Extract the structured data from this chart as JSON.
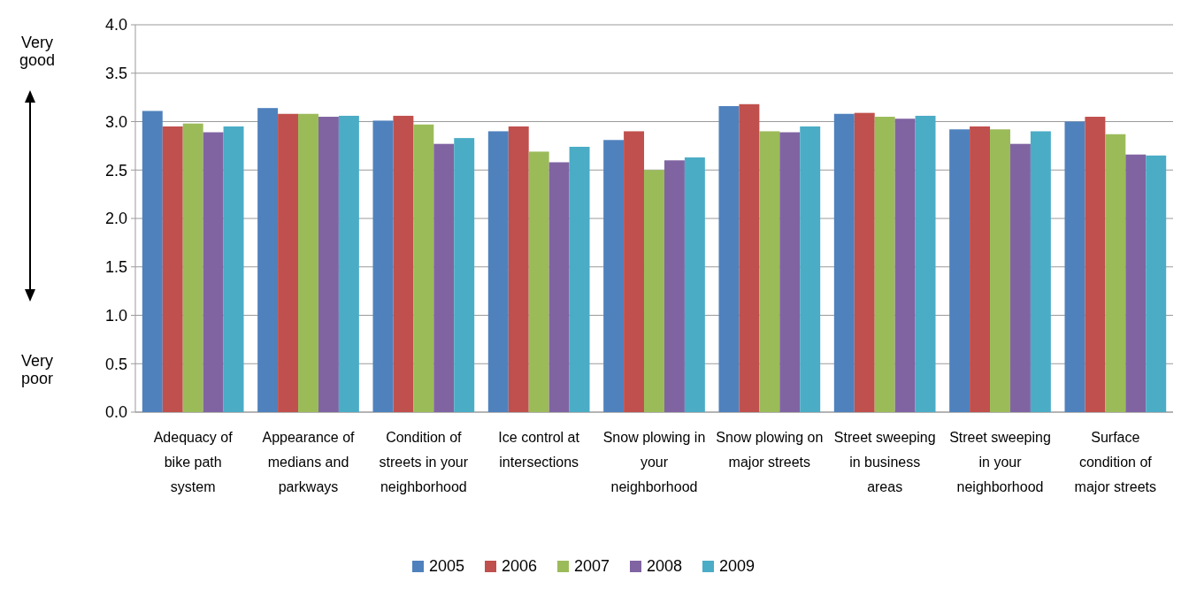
{
  "chart_data": {
    "type": "bar",
    "categories": [
      "Adequacy of bike path system",
      "Appearance of medians and parkways",
      "Condition of streets in your neighborhood",
      "Ice control at intersections",
      "Snow plowing in your neighborhood",
      "Snow plowing on major streets",
      "Street sweeping in business areas",
      "Street sweeping in your neighborhood",
      "Surface condition of major streets"
    ],
    "series": [
      {
        "name": "2005",
        "color": "#4f81bd",
        "values": [
          3.11,
          3.14,
          3.01,
          2.9,
          2.81,
          3.16,
          3.08,
          2.92,
          3.0
        ]
      },
      {
        "name": "2006",
        "color": "#c0504d",
        "values": [
          2.95,
          3.08,
          3.06,
          2.95,
          2.9,
          3.18,
          3.09,
          2.95,
          3.05
        ]
      },
      {
        "name": "2007",
        "color": "#9bbb59",
        "values": [
          2.98,
          3.08,
          2.97,
          2.69,
          2.5,
          2.9,
          3.05,
          2.92,
          2.87
        ]
      },
      {
        "name": "2008",
        "color": "#8064a2",
        "values": [
          2.89,
          3.05,
          2.77,
          2.58,
          2.6,
          2.89,
          3.03,
          2.77,
          2.66
        ]
      },
      {
        "name": "2009",
        "color": "#4bacc6",
        "values": [
          2.95,
          3.06,
          2.83,
          2.74,
          2.63,
          2.95,
          3.06,
          2.9,
          2.65
        ]
      }
    ],
    "ylim": [
      0,
      4
    ],
    "yticks": [
      {
        "value": 0,
        "label": "0.0"
      },
      {
        "value": 0.5,
        "label": "0.5"
      },
      {
        "value": 1,
        "label": "1.0"
      },
      {
        "value": 1.5,
        "label": "1.5"
      },
      {
        "value": 2,
        "label": "2.0"
      },
      {
        "value": 2.5,
        "label": "2.5"
      },
      {
        "value": 3,
        "label": "3.0"
      },
      {
        "value": 3.5,
        "label": "3.5"
      },
      {
        "value": 4,
        "label": "4.0"
      }
    ],
    "grid": "y",
    "legend": "bottom",
    "annotations": [
      "Very good",
      "Very poor"
    ]
  }
}
